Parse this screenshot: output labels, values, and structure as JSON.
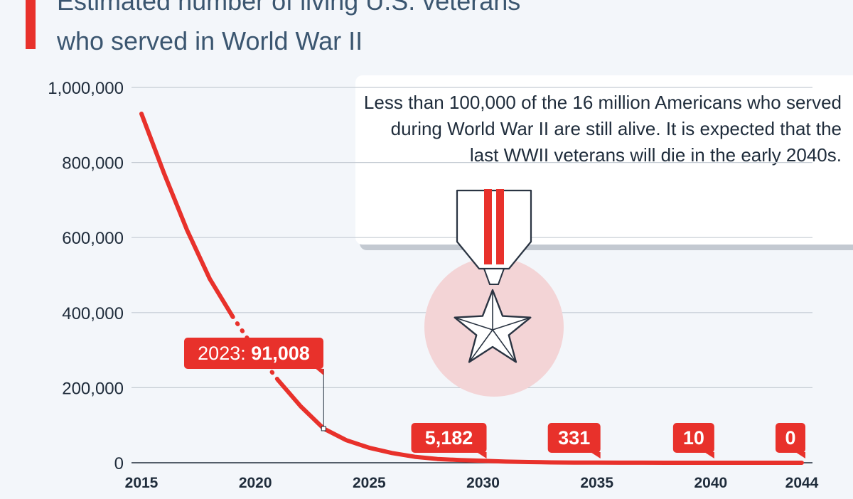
{
  "chart_data": {
    "type": "line",
    "title_lines": [
      "Estimated number of living U.S. veterans",
      "who served in World War II"
    ],
    "x_ticks": [
      "2015",
      "2020",
      "2025",
      "2030",
      "2035",
      "2040",
      "2044"
    ],
    "y_ticks": [
      "0",
      "200,000",
      "400,000",
      "600,000",
      "800,000",
      "1,000,000"
    ],
    "xlim": [
      2015,
      2044
    ],
    "ylim": [
      0,
      1000000
    ],
    "grid": true,
    "series": [
      {
        "color": "#e8312b",
        "x": [
          2015,
          2016,
          2017,
          2018,
          2019,
          2020,
          2021,
          2022,
          2023,
          2024,
          2025,
          2026,
          2027,
          2028,
          2029,
          2030,
          2031,
          2032,
          2033,
          2034,
          2035,
          2036,
          2037,
          2038,
          2039,
          2040,
          2041,
          2042,
          2043,
          2044
        ],
        "y": [
          930000,
          770000,
          620000,
          490000,
          390000,
          300000,
          220000,
          150000,
          91008,
          60000,
          40000,
          26000,
          16000,
          10000,
          7000,
          5182,
          3000,
          1800,
          1000,
          600,
          331,
          200,
          100,
          50,
          25,
          10,
          5,
          2,
          1,
          0
        ],
        "dashed_ranges": [
          [
            2019,
            2021
          ]
        ]
      }
    ],
    "data_labels": [
      {
        "x": 2023,
        "y": 91008,
        "prefix": "2023: ",
        "value": "91,008"
      },
      {
        "x": 2030,
        "y": 5182,
        "prefix": "",
        "value": "5,182"
      },
      {
        "x": 2035,
        "y": 331,
        "prefix": "",
        "value": "331"
      },
      {
        "x": 2040,
        "y": 10,
        "prefix": "",
        "value": "10"
      },
      {
        "x": 2044,
        "y": 0,
        "prefix": "",
        "value": "0"
      }
    ],
    "annotation": "Less than 100,000 of the 16 million Americans who served during World War II are still alive. It is expected that the last WWII veterans will die in the early 2040s."
  },
  "colors": {
    "accent": "#e8312b",
    "text": "#1f2c3b",
    "title": "#3b5670",
    "grid": "#c5ccd4",
    "medal_circle": "#f3d4d6",
    "medal_outline": "#2a3442"
  },
  "icons": {
    "medal": "medal-icon"
  }
}
